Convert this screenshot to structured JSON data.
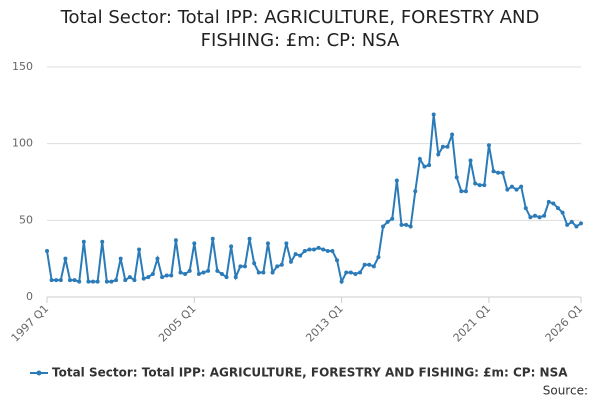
{
  "chart_data": {
    "type": "line",
    "title": "Total Sector: Total IPP: AGRICULTURE, FORESTRY AND FISHING: £m: CP: NSA",
    "source": "Source:",
    "categories": [
      "1997 Q1",
      null,
      null,
      null,
      null,
      null,
      null,
      null,
      null,
      null,
      null,
      null,
      null,
      null,
      null,
      null,
      null,
      null,
      null,
      null,
      null,
      null,
      null,
      null,
      null,
      null,
      null,
      null,
      null,
      null,
      null,
      null,
      "2005 Q1",
      null,
      null,
      null,
      null,
      null,
      null,
      null,
      null,
      null,
      null,
      null,
      null,
      null,
      null,
      null,
      null,
      null,
      null,
      null,
      null,
      null,
      null,
      null,
      null,
      null,
      null,
      null,
      null,
      null,
      null,
      null,
      "2013 Q1",
      null,
      null,
      null,
      null,
      null,
      null,
      null,
      null,
      null,
      null,
      null,
      null,
      null,
      null,
      null,
      null,
      null,
      null,
      null,
      null,
      null,
      null,
      null,
      null,
      null,
      null,
      null,
      null,
      null,
      null,
      null,
      "2021 Q1",
      null,
      null,
      null,
      null,
      null,
      null,
      null,
      null,
      null,
      null,
      null,
      null,
      null,
      null,
      null,
      null,
      null,
      null,
      null,
      "2026 Q1"
    ],
    "series": [
      {
        "name": "Total Sector: Total IPP: AGRICULTURE, FORESTRY AND FISHING: £m: CP: NSA",
        "color": "#2b7bb9",
        "values": [
          30,
          11,
          11,
          11,
          25,
          11,
          11,
          10,
          36,
          10,
          10,
          10,
          36,
          10,
          10,
          11,
          25,
          11,
          13,
          11,
          31,
          12,
          13,
          15,
          25,
          13,
          14,
          14,
          37,
          16,
          15,
          17,
          35,
          15,
          16,
          17,
          38,
          17,
          15,
          13,
          33,
          13,
          20,
          20,
          38,
          22,
          16,
          16,
          35,
          16,
          20,
          21,
          35,
          23,
          28,
          27,
          30,
          31,
          31,
          32,
          31,
          30,
          30,
          24,
          10,
          16,
          16,
          15,
          16,
          21,
          21,
          20,
          26,
          46,
          49,
          51,
          76,
          47,
          47,
          46,
          69,
          90,
          85,
          86,
          119,
          93,
          98,
          98,
          106,
          78,
          69,
          69,
          89,
          74,
          73,
          73,
          99,
          82,
          81,
          81,
          70,
          72,
          70,
          72,
          58,
          52,
          53,
          52,
          53,
          62,
          61,
          58,
          55,
          47,
          49,
          46,
          48
        ]
      }
    ],
    "ylim": [
      0,
      150
    ],
    "yticks": [
      0,
      50,
      100,
      150
    ],
    "grid": true
  }
}
